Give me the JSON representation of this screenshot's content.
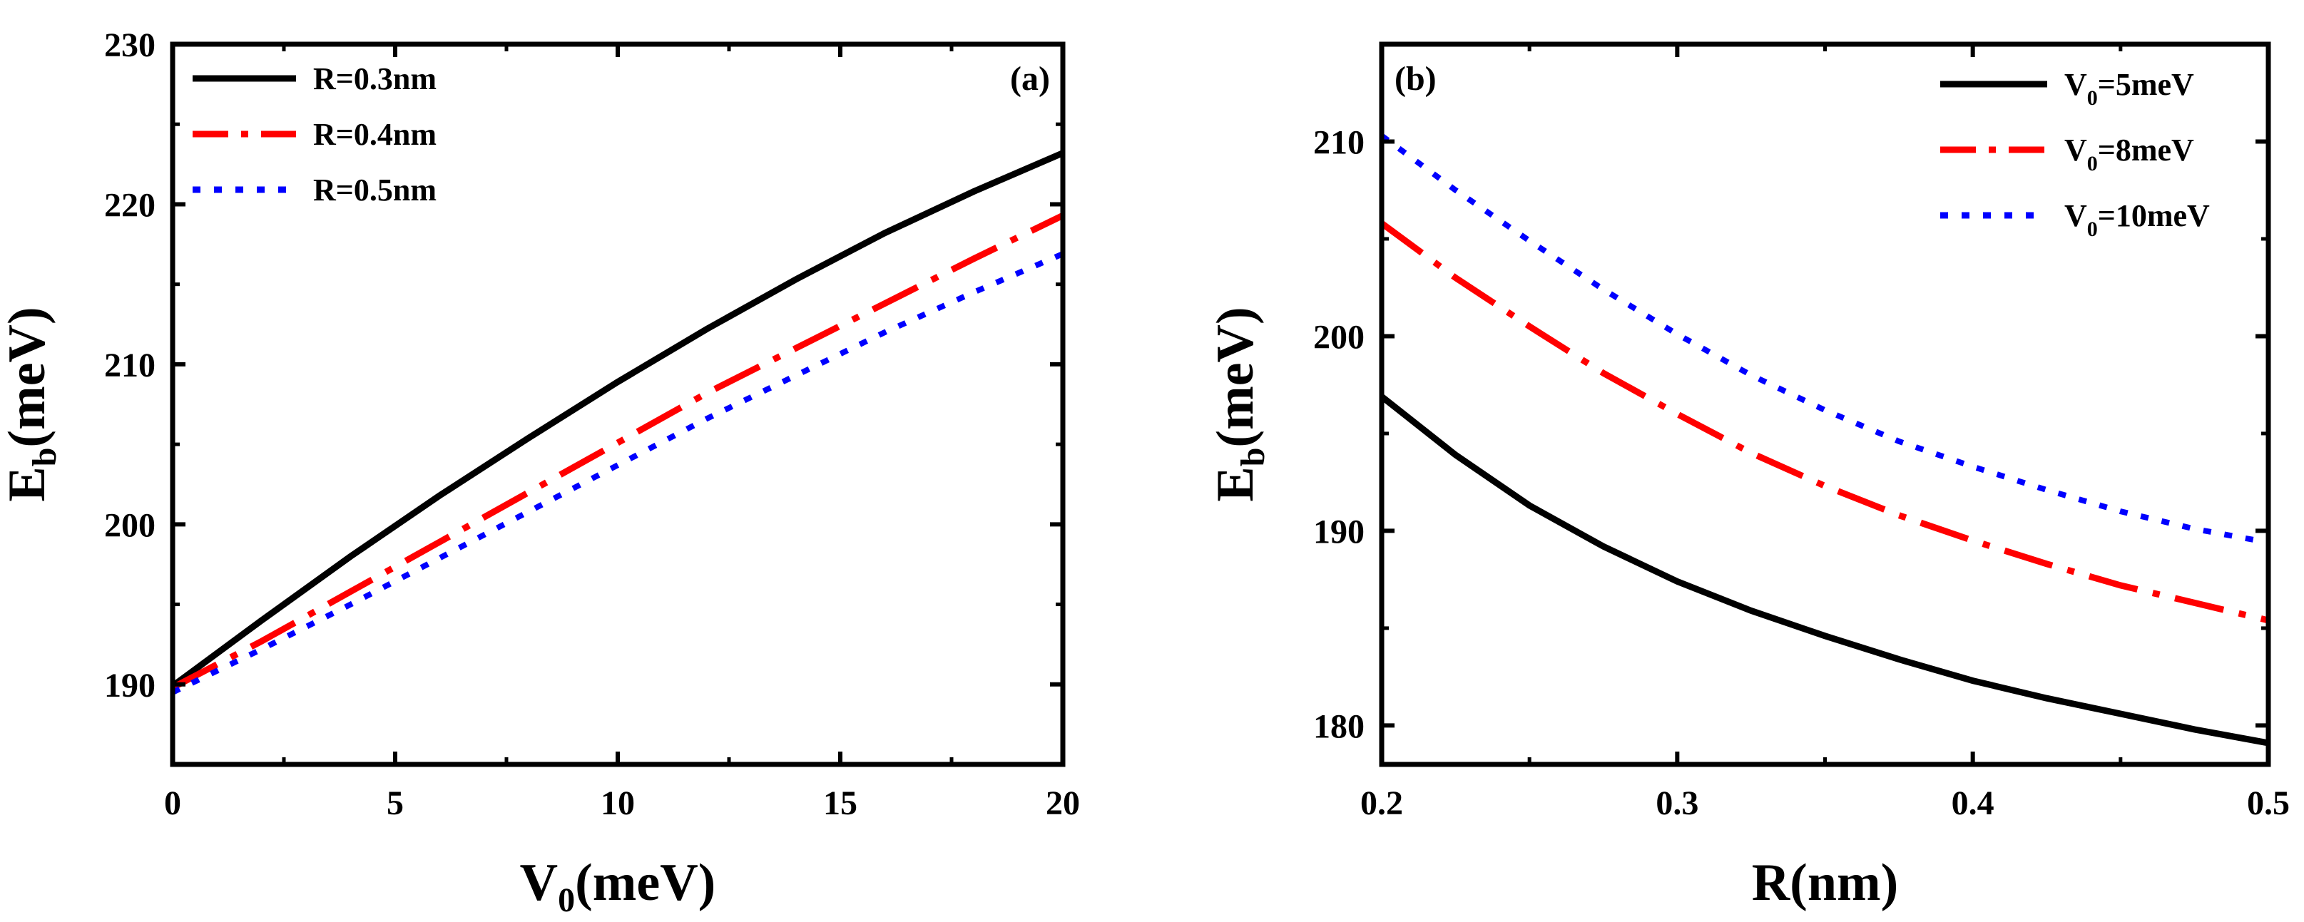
{
  "chart_data": [
    {
      "type": "line",
      "panel_label": "(a)",
      "xlabel": {
        "main": "V",
        "sub": "0",
        "unit": "(meV)"
      },
      "ylabel": {
        "main": "E",
        "sub": "b",
        "unit": "(meV)"
      },
      "xlim": [
        0,
        20
      ],
      "ylim": [
        185,
        230
      ],
      "xticks": [
        0,
        5,
        10,
        15,
        20
      ],
      "xtick_labels": [
        "0",
        "5",
        "10",
        "15",
        "20"
      ],
      "yticks": [
        190,
        200,
        210,
        220,
        230
      ],
      "ytick_labels": [
        "190",
        "200",
        "210",
        "220",
        "230"
      ],
      "grid": false,
      "legend_position": "top-left",
      "series": [
        {
          "name": "R=0.3nm",
          "legend_main": "R=0.3nm",
          "legend_sub": "",
          "legend_tail": "",
          "color": "#000000",
          "style": "solid",
          "x": [
            0,
            2,
            4,
            6,
            8,
            10,
            12,
            14,
            16,
            18,
            20
          ],
          "y": [
            189.9,
            194.0,
            198.0,
            201.8,
            205.4,
            208.9,
            212.2,
            215.3,
            218.2,
            220.8,
            223.2
          ]
        },
        {
          "name": "R=0.4nm",
          "legend_main": "R=0.4nm",
          "legend_sub": "",
          "legend_tail": "",
          "color": "#ff0000",
          "style": "dashdot",
          "x": [
            0,
            2,
            4,
            6,
            8,
            10,
            12,
            14,
            16,
            18,
            20
          ],
          "y": [
            189.8,
            192.7,
            195.8,
            198.9,
            202.0,
            205.1,
            208.2,
            211.0,
            213.8,
            216.6,
            219.3
          ]
        },
        {
          "name": "R=0.5nm",
          "legend_main": "R=0.5nm",
          "legend_sub": "",
          "legend_tail": "",
          "color": "#0000ff",
          "style": "dotted",
          "x": [
            0,
            2,
            4,
            6,
            8,
            10,
            12,
            14,
            16,
            18,
            20
          ],
          "y": [
            189.5,
            192.2,
            195.0,
            197.9,
            200.8,
            203.7,
            206.6,
            209.3,
            212.0,
            214.5,
            216.9
          ]
        }
      ]
    },
    {
      "type": "line",
      "panel_label": "(b)",
      "xlabel": {
        "main": "R(nm)",
        "sub": "",
        "unit": ""
      },
      "ylabel": {
        "main": "E",
        "sub": "b",
        "unit": "(meV)"
      },
      "xlim": [
        0.2,
        0.5
      ],
      "ylim": [
        178,
        215
      ],
      "xticks": [
        0.2,
        0.3,
        0.4,
        0.5
      ],
      "xtick_labels": [
        "0.2",
        "0.3",
        "0.4",
        "0.5"
      ],
      "yticks": [
        180,
        190,
        200,
        210
      ],
      "ytick_labels": [
        "180",
        "190",
        "200",
        "210"
      ],
      "grid": false,
      "legend_position": "top-right",
      "series": [
        {
          "name": "V0=5meV",
          "legend_main": "V",
          "legend_sub": "0",
          "legend_tail": "=5meV",
          "color": "#000000",
          "style": "solid",
          "x": [
            0.2,
            0.225,
            0.25,
            0.275,
            0.3,
            0.325,
            0.35,
            0.375,
            0.4,
            0.425,
            0.45,
            0.475,
            0.5
          ],
          "y": [
            196.9,
            193.9,
            191.3,
            189.2,
            187.4,
            185.9,
            184.6,
            183.4,
            182.3,
            181.4,
            180.6,
            179.8,
            179.1
          ]
        },
        {
          "name": "V0=8meV",
          "legend_main": "V",
          "legend_sub": "0",
          "legend_tail": "=8meV",
          "color": "#ff0000",
          "style": "dashdot",
          "x": [
            0.2,
            0.225,
            0.25,
            0.275,
            0.3,
            0.325,
            0.35,
            0.375,
            0.4,
            0.425,
            0.45,
            0.475,
            0.5
          ],
          "y": [
            205.8,
            203.0,
            200.5,
            198.1,
            196.0,
            194.0,
            192.3,
            190.8,
            189.5,
            188.3,
            187.2,
            186.3,
            185.4
          ]
        },
        {
          "name": "V0=10meV",
          "legend_main": "V",
          "legend_sub": "0",
          "legend_tail": "=10meV",
          "color": "#0000ff",
          "style": "dotted",
          "x": [
            0.2,
            0.225,
            0.25,
            0.275,
            0.3,
            0.325,
            0.35,
            0.375,
            0.4,
            0.425,
            0.45,
            0.475,
            0.5
          ],
          "y": [
            210.3,
            207.5,
            204.9,
            202.4,
            200.1,
            198.0,
            196.2,
            194.6,
            193.3,
            192.1,
            191.0,
            190.1,
            189.4
          ]
        }
      ]
    }
  ]
}
